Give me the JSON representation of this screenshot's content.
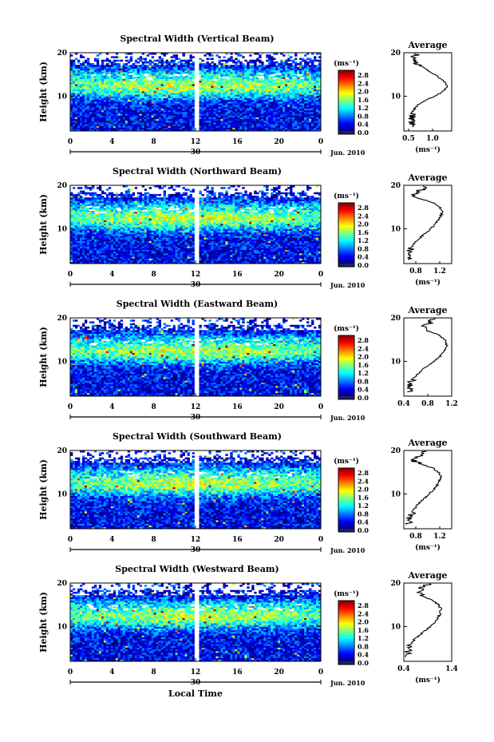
{
  "chart_data": [
    {
      "type": "heatmap",
      "title": "Spectral Width (Vertical Beam)",
      "ylabel": "Height (km)",
      "x_ticks": [
        "0",
        "4",
        "8",
        "12",
        "16",
        "20",
        "0"
      ],
      "xlim": [
        0,
        24
      ],
      "ylim": [
        2,
        20
      ],
      "y_ticks": [
        "20",
        "10"
      ],
      "date_day": "30",
      "date_month": "Jun. 2010",
      "colorbar": {
        "unit": "(ms⁻¹)",
        "ticks": [
          "2.8",
          "2.4",
          "2.0",
          "1.6",
          "1.2",
          "0.8",
          "0.4",
          "0.0"
        ],
        "range": [
          0,
          3.0
        ]
      },
      "profile": {
        "title": "Average",
        "xlabel": "(ms⁻¹)",
        "x_ticks": [
          "0.5",
          "1.0"
        ],
        "xlim": [
          0.4,
          1.4
        ],
        "y_ticks": [
          "20",
          "10"
        ],
        "heights": [
          3,
          4,
          5,
          6,
          7,
          8,
          9,
          10,
          11,
          12,
          13,
          14,
          15,
          16,
          17,
          18,
          19,
          20
        ],
        "values": [
          0.6,
          0.55,
          0.58,
          0.56,
          0.62,
          0.7,
          0.85,
          1.05,
          1.2,
          1.3,
          1.28,
          1.18,
          1.05,
          0.9,
          0.75,
          0.62,
          0.6,
          0.7
        ]
      }
    },
    {
      "type": "heatmap",
      "title": "Spectral Width (Northward Beam)",
      "ylabel": "Height (km)",
      "x_ticks": [
        "0",
        "4",
        "8",
        "12",
        "16",
        "20",
        "0"
      ],
      "xlim": [
        0,
        24
      ],
      "ylim": [
        2,
        20
      ],
      "y_ticks": [
        "20",
        "10"
      ],
      "date_day": "30",
      "date_month": "Jun. 2010",
      "colorbar": {
        "unit": "(ms⁻¹)",
        "ticks": [
          "2.8",
          "2.4",
          "2.0",
          "1.6",
          "1.2",
          "0.8",
          "0.4",
          "0.0"
        ],
        "range": [
          0,
          3.0
        ]
      },
      "profile": {
        "title": "Average",
        "xlabel": "(ms⁻¹)",
        "x_ticks": [
          "0.8",
          "1.2"
        ],
        "xlim": [
          0.6,
          1.4
        ],
        "y_ticks": [
          "20",
          "10"
        ],
        "heights": [
          3,
          4,
          5,
          6,
          7,
          8,
          9,
          10,
          11,
          12,
          13,
          14,
          15,
          16,
          17,
          18,
          19,
          20
        ],
        "values": [
          0.7,
          0.72,
          0.7,
          0.74,
          0.8,
          0.88,
          0.96,
          1.05,
          1.12,
          1.18,
          1.22,
          1.25,
          1.2,
          1.1,
          0.85,
          0.75,
          0.9,
          0.95
        ]
      }
    },
    {
      "type": "heatmap",
      "title": "Spectral Width (Eastward Beam)",
      "ylabel": "Height (km)",
      "x_ticks": [
        "0",
        "4",
        "8",
        "12",
        "16",
        "20",
        "0"
      ],
      "xlim": [
        0,
        24
      ],
      "ylim": [
        2,
        20
      ],
      "y_ticks": [
        "20",
        "10"
      ],
      "date_day": "30",
      "date_month": "Jun. 2010",
      "colorbar": {
        "unit": "(ms⁻¹)",
        "ticks": [
          "2.8",
          "2.4",
          "2.0",
          "1.6",
          "1.2",
          "0.8",
          "0.4",
          "0.0"
        ],
        "range": [
          0,
          3.0
        ]
      },
      "profile": {
        "title": "Average",
        "xlabel": "",
        "x_ticks": [
          "0.4",
          "0.8",
          "1.2"
        ],
        "xlim": [
          0.4,
          1.2
        ],
        "y_ticks": [
          "20",
          "10"
        ],
        "heights": [
          3,
          4,
          5,
          6,
          7,
          8,
          9,
          10,
          11,
          12,
          13,
          14,
          15,
          16,
          17,
          18,
          19,
          20
        ],
        "values": [
          0.5,
          0.48,
          0.52,
          0.55,
          0.62,
          0.7,
          0.8,
          0.9,
          1.0,
          1.05,
          1.1,
          1.12,
          1.08,
          1.0,
          0.8,
          0.7,
          0.85,
          0.9
        ]
      }
    },
    {
      "type": "heatmap",
      "title": "Spectral Width (Southward Beam)",
      "ylabel": "Height (km)",
      "x_ticks": [
        "0",
        "4",
        "8",
        "12",
        "16",
        "20",
        "0"
      ],
      "xlim": [
        0,
        24
      ],
      "ylim": [
        2,
        20
      ],
      "y_ticks": [
        "20",
        "10"
      ],
      "date_day": "30",
      "date_month": "Jun. 2010",
      "colorbar": {
        "unit": "(ms⁻¹)",
        "ticks": [
          "2.8",
          "2.4",
          "2.0",
          "1.6",
          "1.2",
          "0.8",
          "0.4",
          "0.0"
        ],
        "range": [
          0,
          3.0
        ]
      },
      "profile": {
        "title": "Average",
        "xlabel": "(ms⁻¹)",
        "x_ticks": [
          "0.8",
          "1.2"
        ],
        "xlim": [
          0.6,
          1.4
        ],
        "y_ticks": [
          "20",
          "10"
        ],
        "heights": [
          3,
          4,
          5,
          6,
          7,
          8,
          9,
          10,
          11,
          12,
          13,
          14,
          15,
          16,
          17,
          18,
          19,
          20
        ],
        "values": [
          0.7,
          0.68,
          0.72,
          0.75,
          0.8,
          0.86,
          0.94,
          1.02,
          1.1,
          1.16,
          1.2,
          1.22,
          1.18,
          1.08,
          0.85,
          0.72,
          0.88,
          1.0
        ]
      }
    },
    {
      "type": "heatmap",
      "title": "Spectral Width (Westward Beam)",
      "ylabel": "Height (km)",
      "xlabel": "Local Time",
      "x_ticks": [
        "0",
        "4",
        "8",
        "12",
        "16",
        "20",
        "0"
      ],
      "xlim": [
        0,
        24
      ],
      "ylim": [
        2,
        20
      ],
      "y_ticks": [
        "20",
        "10"
      ],
      "date_day": "30",
      "date_month": "Jun. 2010",
      "colorbar": {
        "unit": "(ms⁻¹)",
        "ticks": [
          "2.8",
          "2.4",
          "2.0",
          "1.6",
          "1.2",
          "0.8",
          "0.4",
          "0.0"
        ],
        "range": [
          0,
          3.0
        ]
      },
      "profile": {
        "title": "Average",
        "xlabel": "(ms⁻¹)",
        "x_ticks": [
          "0.4",
          "1.4"
        ],
        "xlim": [
          0.4,
          1.4
        ],
        "y_ticks": [
          "20",
          "10"
        ],
        "heights": [
          3,
          4,
          5,
          6,
          7,
          8,
          9,
          10,
          11,
          12,
          13,
          14,
          15,
          16,
          17,
          18,
          19,
          20
        ],
        "values": [
          0.5,
          0.48,
          0.52,
          0.56,
          0.62,
          0.72,
          0.84,
          0.96,
          1.06,
          1.12,
          1.16,
          1.18,
          1.12,
          1.0,
          0.8,
          0.7,
          0.8,
          0.95
        ]
      }
    }
  ]
}
